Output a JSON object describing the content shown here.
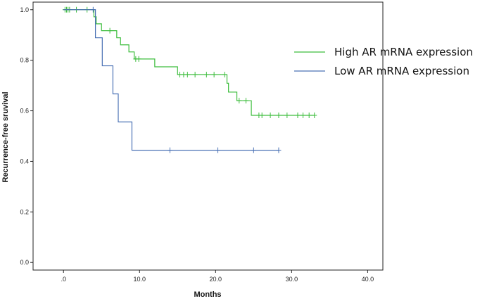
{
  "chart_data": {
    "type": "line",
    "subtype": "kaplan-meier",
    "title": "",
    "xlabel": "Months",
    "ylabel": "Recurrence-free sruvival",
    "xlim": [
      -4,
      42
    ],
    "ylim": [
      -0.03,
      1.03
    ],
    "x_ticks": [
      0,
      10,
      20,
      30,
      40
    ],
    "x_tick_labels": [
      ".0",
      "10.0",
      "20.0",
      "30.0",
      "40.0"
    ],
    "y_ticks": [
      0,
      0.2,
      0.4,
      0.6,
      0.8,
      1.0
    ],
    "y_tick_labels": [
      "0.0",
      "0.2",
      "0.4",
      "0.6",
      "0.8",
      "1.0"
    ],
    "grid": false,
    "legend_position": "right",
    "series": [
      {
        "name": "High AR mRNA expression",
        "color": "#3dbd3d",
        "steps": [
          [
            0,
            1.0
          ],
          [
            4.0,
            0.972
          ],
          [
            4.3,
            0.944
          ],
          [
            5.0,
            0.917
          ],
          [
            7.0,
            0.889
          ],
          [
            7.5,
            0.861
          ],
          [
            8.6,
            0.833
          ],
          [
            9.3,
            0.805
          ],
          [
            12.0,
            0.774
          ],
          [
            15.0,
            0.743
          ],
          [
            21.5,
            0.709
          ],
          [
            21.7,
            0.674
          ],
          [
            22.8,
            0.64
          ],
          [
            24.7,
            0.582
          ],
          [
            33.0,
            0.582
          ]
        ],
        "censored": [
          [
            0.2,
            1.0
          ],
          [
            0.4,
            1.0
          ],
          [
            0.6,
            1.0
          ],
          [
            0.8,
            1.0
          ],
          [
            1.7,
            1.0
          ],
          [
            3.1,
            1.0
          ],
          [
            6.1,
            0.917
          ],
          [
            9.5,
            0.805
          ],
          [
            9.9,
            0.805
          ],
          [
            15.3,
            0.743
          ],
          [
            15.8,
            0.743
          ],
          [
            16.3,
            0.743
          ],
          [
            17.3,
            0.743
          ],
          [
            18.8,
            0.743
          ],
          [
            19.8,
            0.743
          ],
          [
            21.2,
            0.743
          ],
          [
            23.1,
            0.64
          ],
          [
            24.0,
            0.64
          ],
          [
            25.7,
            0.582
          ],
          [
            26.1,
            0.582
          ],
          [
            27.2,
            0.582
          ],
          [
            28.3,
            0.582
          ],
          [
            29.4,
            0.582
          ],
          [
            30.8,
            0.582
          ],
          [
            31.5,
            0.582
          ],
          [
            32.3,
            0.582
          ],
          [
            33.0,
            0.582
          ]
        ]
      },
      {
        "name": "Low AR mRNA expression",
        "color": "#4b72b5",
        "steps": [
          [
            0,
            1.0
          ],
          [
            4.2,
            0.889
          ],
          [
            5.1,
            0.778
          ],
          [
            6.5,
            0.667
          ],
          [
            7.2,
            0.556
          ],
          [
            9.0,
            0.444
          ],
          [
            28.3,
            0.444
          ]
        ],
        "censored": [
          [
            3.9,
            1.0
          ],
          [
            14.0,
            0.444
          ],
          [
            20.3,
            0.444
          ],
          [
            25.0,
            0.444
          ],
          [
            28.3,
            0.444
          ]
        ]
      }
    ]
  }
}
